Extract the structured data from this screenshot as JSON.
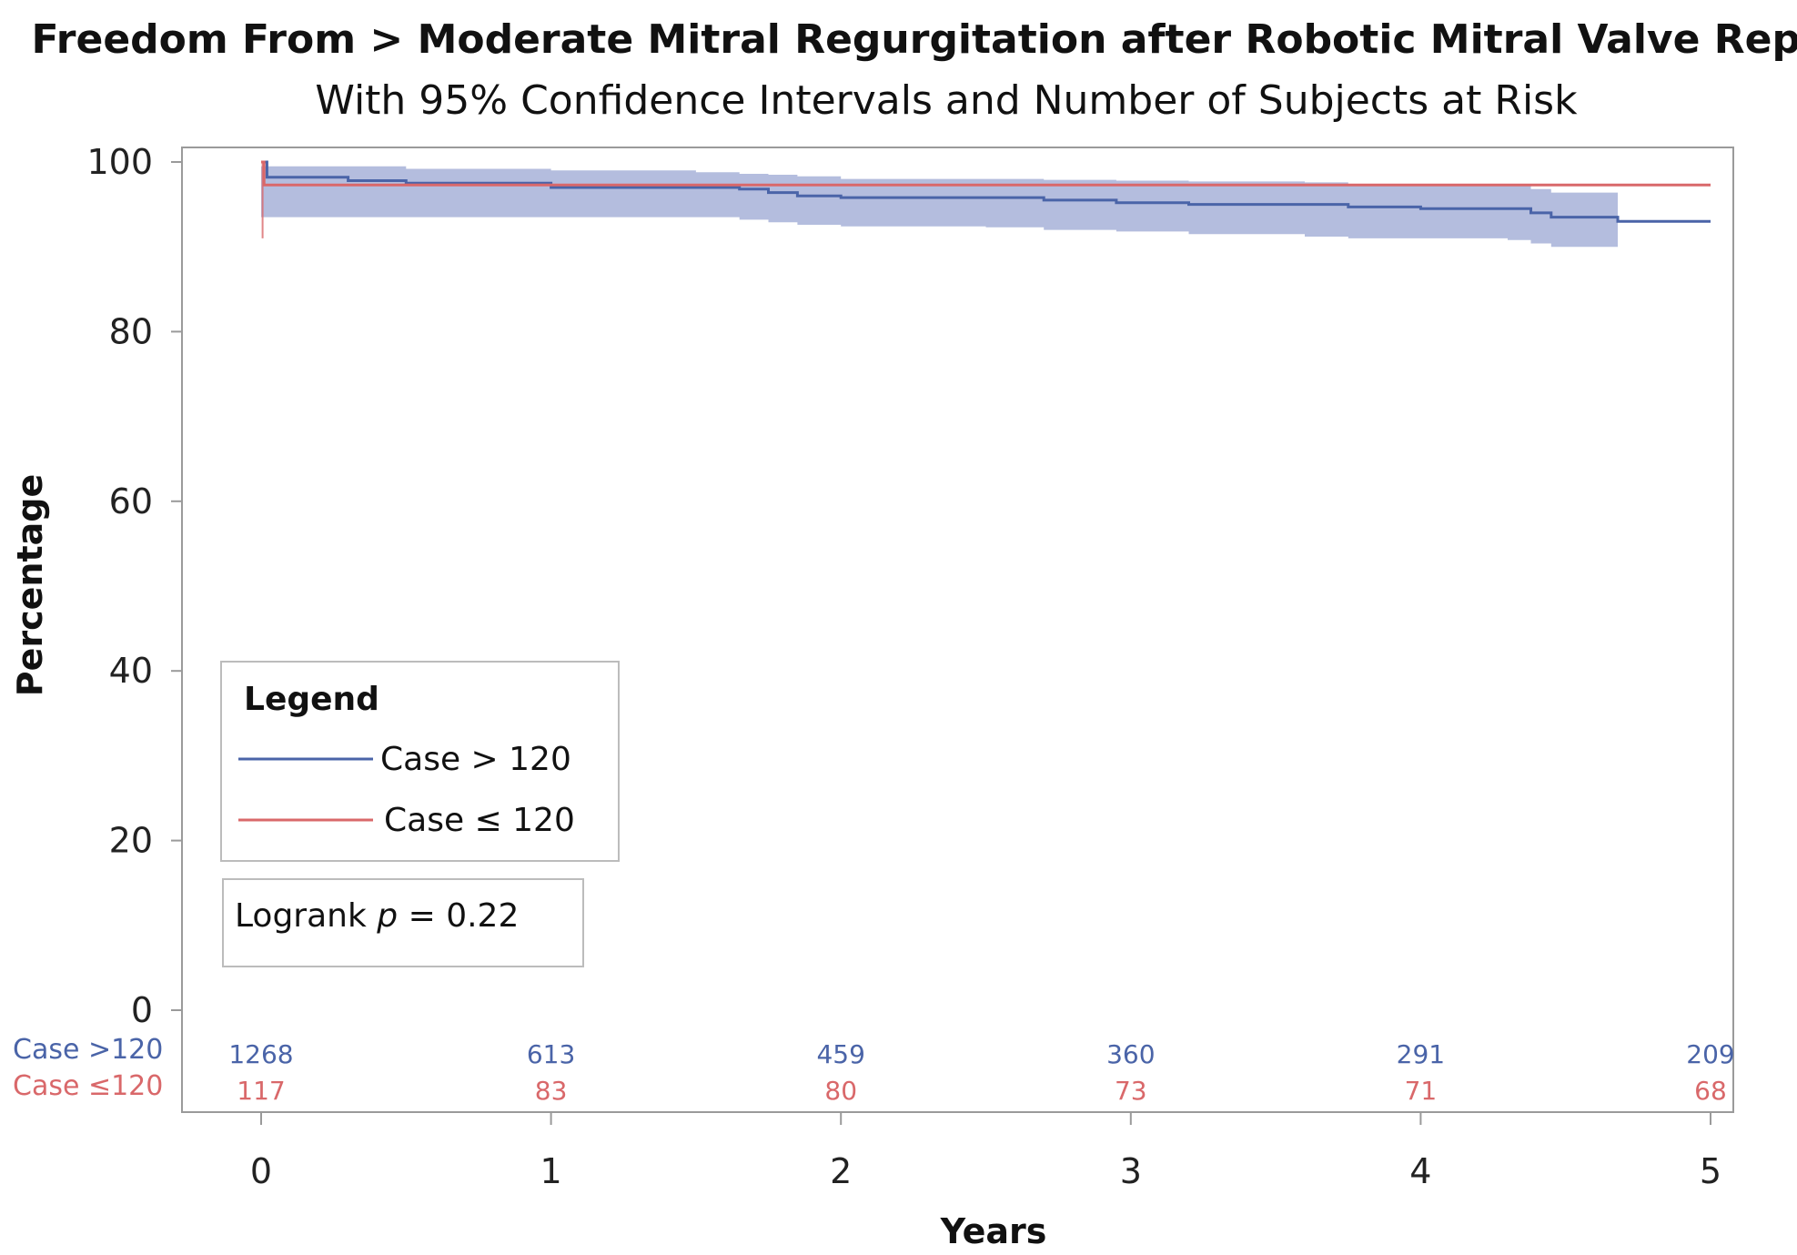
{
  "colors": {
    "case_gt": "#4a64a8",
    "case_le": "#d9686a",
    "ci_band": "#a7b2d8",
    "frame": "#9a9a9a"
  },
  "chart_data": {
    "type": "line",
    "title": "Freedom From > Moderate Mitral Regurgitation after Robotic Mitral Valve Repair",
    "subtitle": "With 95% Confidence Intervals and Number of Subjects at Risk",
    "xlabel": "Years",
    "ylabel": "Percentage",
    "xlim": [
      0,
      5
    ],
    "ylim": [
      0,
      100
    ],
    "x_ticks": [
      "0",
      "1",
      "2",
      "3",
      "4",
      "5"
    ],
    "y_ticks": [
      "0",
      "20",
      "40",
      "60",
      "80",
      "100"
    ],
    "grid": false,
    "legend": {
      "title": "Legend",
      "placement": "lower-left",
      "entries": [
        "Case > 120",
        "Case ≤ 120"
      ]
    },
    "annotation": {
      "prefix": "Logrank ",
      "italic": "p",
      "suffix": " = 0.22"
    },
    "series": [
      {
        "name": "Case > 120",
        "color": "#4a64a8",
        "step": true,
        "x": [
          0,
          0.02,
          0.3,
          0.5,
          1.0,
          1.5,
          1.65,
          1.75,
          1.85,
          2.0,
          2.5,
          2.7,
          2.95,
          3.2,
          3.6,
          3.75,
          4.0,
          4.3,
          4.38,
          4.45,
          4.68,
          5.0
        ],
        "y": [
          100,
          98.2,
          97.8,
          97.5,
          97.0,
          97.0,
          96.8,
          96.4,
          96.0,
          95.8,
          95.8,
          95.5,
          95.2,
          95.0,
          95.0,
          94.7,
          94.5,
          94.5,
          94.0,
          93.5,
          93.0,
          93.0
        ],
        "ci_x": [
          0,
          0.5,
          1.0,
          1.5,
          1.65,
          1.75,
          1.85,
          2.0,
          2.5,
          2.7,
          2.95,
          3.2,
          3.6,
          3.75,
          4.0,
          4.3,
          4.38,
          4.45,
          4.68
        ],
        "ci_lower": [
          93.5,
          93.5,
          93.5,
          93.5,
          93.2,
          92.9,
          92.6,
          92.4,
          92.3,
          92.0,
          91.8,
          91.5,
          91.2,
          91.0,
          91.0,
          90.8,
          90.4,
          90.0,
          89.6
        ],
        "ci_upper": [
          99.5,
          99.2,
          99.0,
          98.8,
          98.6,
          98.5,
          98.3,
          98.0,
          98.0,
          97.9,
          97.8,
          97.7,
          97.6,
          97.4,
          97.3,
          97.2,
          96.8,
          96.4,
          96.0
        ]
      },
      {
        "name": "Case ≤ 120",
        "color": "#d9686a",
        "step": true,
        "x": [
          0,
          0.01,
          5.0
        ],
        "y": [
          100,
          97.3,
          97.3
        ],
        "initial_ci": [
          91.0,
          100
        ]
      }
    ],
    "at_risk": {
      "x": [
        0,
        1,
        2,
        3,
        4,
        5
      ],
      "rows": [
        {
          "label": "Case >120",
          "color": "#4a64a8",
          "values": [
            "1268",
            "613",
            "459",
            "360",
            "291",
            "209"
          ]
        },
        {
          "label": "Case ≤120",
          "color": "#d9686a",
          "values": [
            "117",
            "83",
            "80",
            "73",
            "71",
            "68"
          ]
        }
      ]
    }
  }
}
